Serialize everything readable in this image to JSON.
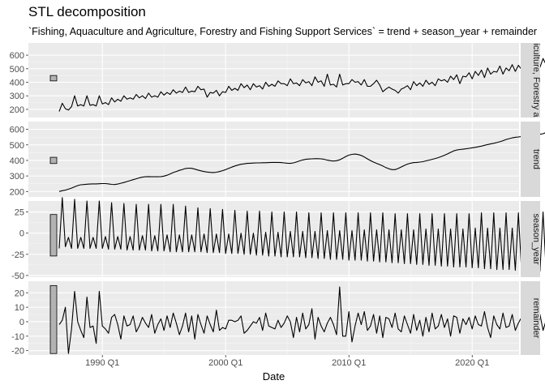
{
  "chart_data": {
    "type": "line",
    "title": "STL decomposition",
    "subtitle": "`Fishing, Aquaculture and Agriculture, Forestry and Fishing Support Services` = trend + season_year + remainder",
    "xlabel": "Date",
    "x_ticks": [
      "1990 Q1",
      "2000 Q1",
      "2010 Q1",
      "2020 Q1"
    ],
    "x_tick_years": [
      1990,
      2000,
      2010,
      2020
    ],
    "x_range": [
      1984.0,
      2023.8
    ],
    "x_start": 1986.5,
    "x_step": 0.25,
    "grid": true,
    "panels": [
      {
        "strip": "Fishing, Aquaculture and Agriculture, Forestry and Fishing Support Services",
        "strip_visible": "iculture, Forestry a",
        "ylim": [
          140,
          690
        ],
        "yticks": [
          200,
          300,
          400,
          500,
          600
        ],
        "bar": [
          410,
          450
        ],
        "values": [
          185,
          245,
          205,
          195,
          220,
          300,
          225,
          235,
          225,
          300,
          230,
          235,
          225,
          300,
          240,
          250,
          235,
          285,
          255,
          275,
          260,
          300,
          275,
          285,
          275,
          310,
          285,
          300,
          280,
          320,
          290,
          300,
          290,
          330,
          305,
          325,
          310,
          345,
          320,
          335,
          325,
          365,
          325,
          335,
          330,
          370,
          345,
          350,
          290,
          325,
          320,
          340,
          300,
          330,
          325,
          370,
          340,
          355,
          340,
          390,
          360,
          380,
          345,
          390,
          365,
          375,
          350,
          400,
          370,
          385,
          370,
          410,
          390,
          390,
          375,
          425,
          390,
          395,
          375,
          420,
          395,
          405,
          375,
          440,
          400,
          410,
          370,
          460,
          380,
          385,
          365,
          460,
          380,
          390,
          390,
          420,
          400,
          405,
          380,
          420,
          370,
          370,
          390,
          415,
          380,
          330,
          350,
          365,
          350,
          340,
          320,
          350,
          360,
          375,
          345,
          405,
          375,
          395,
          370,
          415,
          385,
          400,
          375,
          425,
          410,
          420,
          400,
          445,
          420,
          455,
          390,
          445,
          440,
          470,
          425,
          480,
          450,
          490,
          435,
          505,
          460,
          480,
          475,
          520,
          460,
          505,
          485,
          530,
          480,
          525,
          495,
          560,
          500,
          540,
          510,
          565,
          510,
          575,
          530,
          590,
          560,
          595,
          520,
          620,
          560,
          625,
          515,
          625,
          615,
          570,
          600,
          650
        ]
      },
      {
        "strip": "trend",
        "ylim": [
          165,
          650
        ],
        "yticks": [
          200,
          300,
          400,
          500,
          600
        ],
        "bar": [
          380,
          420
        ],
        "values": [
          200,
          205,
          209,
          215,
          222,
          230,
          238,
          243,
          245,
          247,
          248,
          249,
          249,
          250,
          251,
          251,
          249,
          246,
          245,
          248,
          253,
          258,
          264,
          270,
          276,
          282,
          288,
          292,
          295,
          296,
          295,
          295,
          295,
          296,
          299,
          305,
          313,
          322,
          329,
          336,
          342,
          348,
          350,
          349,
          344,
          338,
          333,
          328,
          325,
          323,
          322,
          324,
          328,
          334,
          341,
          349,
          357,
          364,
          370,
          375,
          378,
          381,
          382,
          383,
          384,
          384,
          385,
          385,
          386,
          387,
          387,
          387,
          386,
          384,
          382,
          381,
          384,
          390,
          397,
          403,
          407,
          409,
          410,
          411,
          411,
          410,
          407,
          402,
          398,
          396,
          398,
          404,
          414,
          425,
          434,
          439,
          441,
          438,
          432,
          422,
          410,
          399,
          389,
          381,
          373,
          364,
          354,
          346,
          341,
          341,
          348,
          358,
          368,
          376,
          382,
          386,
          387,
          389,
          392,
          397,
          402,
          407,
          412,
          418,
          425,
          433,
          442,
          452,
          461,
          467,
          470,
          472,
          475,
          478,
          481,
          484,
          488,
          492,
          497,
          502,
          506,
          510,
          515,
          520,
          527,
          535,
          540,
          545,
          549,
          551,
          554,
          558,
          562,
          565,
          566,
          566,
          568,
          572,
          580,
          588,
          595,
          601,
          604,
          606,
          608,
          609,
          610,
          612,
          614,
          615,
          616,
          617
        ]
      },
      {
        "strip": "season_year",
        "ylim": [
          -52,
          38
        ],
        "yticks": [
          -50,
          -25,
          0,
          25
        ],
        "bar": [
          -27,
          22
        ],
        "values": [
          -18,
          42,
          -16,
          -5,
          -18,
          40,
          -18,
          -5,
          -18,
          38,
          -18,
          -5,
          -18,
          38,
          -18,
          -4,
          -19,
          36,
          -19,
          -4,
          -19,
          35,
          -20,
          -4,
          -20,
          34,
          -20,
          -3,
          -20,
          34,
          -21,
          -3,
          -21,
          34,
          -21,
          -2,
          -22,
          34,
          -22,
          -2,
          -22,
          32,
          -22,
          -2,
          -22,
          30,
          -22,
          -1,
          -23,
          29,
          -23,
          -1,
          -23,
          28,
          -24,
          -1,
          -24,
          27,
          -24,
          0,
          -25,
          26,
          -25,
          0,
          -26,
          26,
          -26,
          1,
          -27,
          25,
          -27,
          1,
          -28,
          25,
          -28,
          2,
          -28,
          25,
          -28,
          2,
          -29,
          24,
          -29,
          2,
          -30,
          24,
          -30,
          3,
          -31,
          24,
          -31,
          3,
          -31,
          24,
          -32,
          3,
          -32,
          24,
          -32,
          4,
          -33,
          24,
          -33,
          4,
          -34,
          24,
          -34,
          4,
          -35,
          23,
          -35,
          4,
          -36,
          23,
          -36,
          4,
          -37,
          23,
          -37,
          5,
          -38,
          23,
          -38,
          5,
          -39,
          23,
          -39,
          5,
          -40,
          23,
          -40,
          5,
          -40,
          23,
          -41,
          6,
          -41,
          24,
          -42,
          6,
          -42,
          24,
          -43,
          6,
          -43,
          24,
          -43,
          6,
          -44,
          24,
          -44,
          7,
          -44,
          24,
          -45,
          7,
          -45,
          25,
          -45,
          7,
          -45,
          25,
          -46,
          7,
          -46,
          26,
          -46,
          8,
          -46,
          26,
          -47,
          8,
          -47,
          27,
          -47,
          8,
          -47,
          27,
          -48,
          28
        ]
      },
      {
        "strip": "remainder",
        "ylim": [
          -23,
          28
        ],
        "yticks": [
          -20,
          -10,
          0,
          10,
          20
        ],
        "bar": [
          -22,
          25
        ],
        "values": [
          -2,
          1,
          10,
          -22,
          -5,
          21,
          0,
          -6,
          -11,
          17,
          -4,
          -3,
          -15,
          21,
          -3,
          -5,
          -8,
          3,
          5,
          -2,
          -12,
          4,
          -3,
          -2,
          4,
          -7,
          -3,
          3,
          -1,
          -4,
          5,
          -8,
          -2,
          2,
          -6,
          4,
          -4,
          6,
          -1,
          -9,
          -3,
          6,
          -7,
          4,
          -12,
          5,
          -2,
          -8,
          4,
          -2,
          -7,
          8,
          -6,
          -4,
          -5,
          1,
          1,
          0,
          1,
          4,
          -8,
          -6,
          -3,
          0,
          -1,
          3,
          -6,
          6,
          -3,
          -4,
          -5,
          1,
          -4,
          -1,
          4,
          0,
          -11,
          3,
          -7,
          6,
          -5,
          -2,
          9,
          -12,
          3,
          -3,
          -7,
          -1,
          3,
          -2,
          -9,
          24,
          -10,
          -10,
          7,
          -14,
          -3,
          6,
          -2,
          7,
          -6,
          -3,
          5,
          -8,
          4,
          -11,
          3,
          2,
          -4,
          6,
          -5,
          -7,
          4,
          -2,
          -8,
          5,
          -6,
          1,
          -10,
          3,
          -7,
          6,
          -5,
          -3,
          5,
          -4,
          2,
          -10,
          4,
          3,
          -8,
          2,
          -2,
          3,
          -5,
          4,
          -2,
          -3,
          7,
          -4,
          -11,
          4,
          -2,
          -5,
          6,
          -4,
          -3,
          5,
          -6,
          -1,
          3,
          -5,
          4,
          -8,
          2,
          -3,
          5,
          -6,
          1,
          -4,
          3,
          -2,
          -3,
          4,
          -6,
          -15,
          -18,
          25,
          3,
          -2,
          6,
          -17,
          11
        ]
      }
    ]
  }
}
